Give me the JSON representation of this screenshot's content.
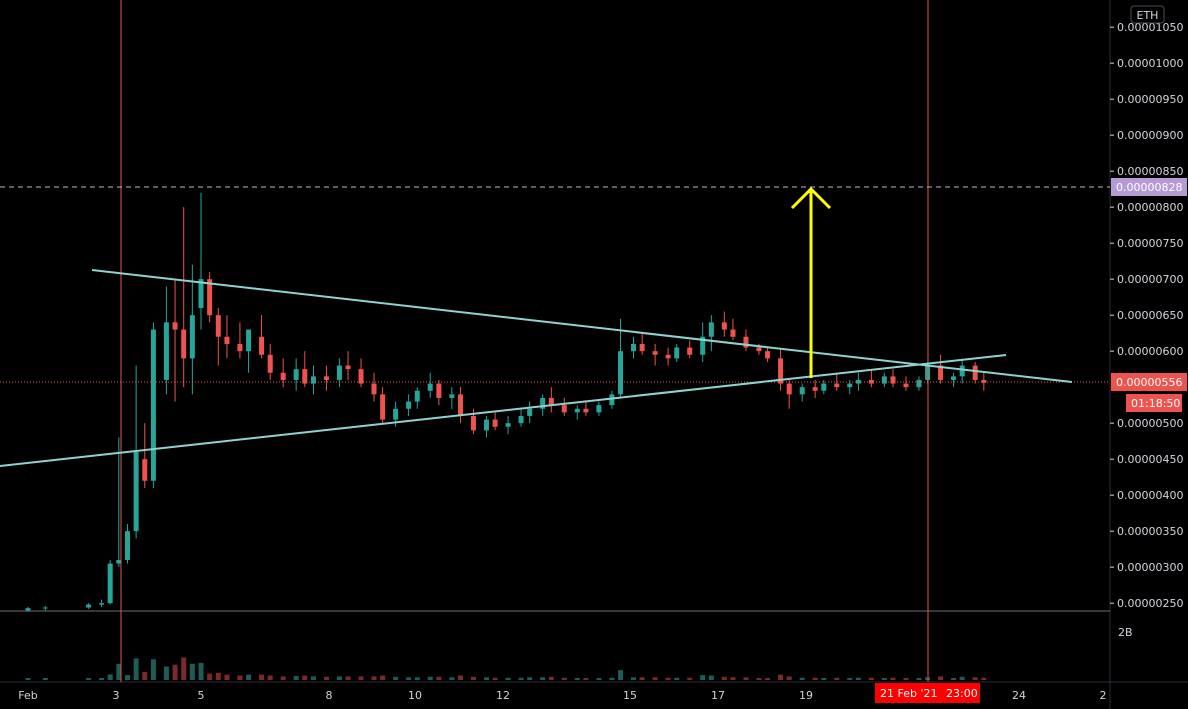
{
  "chart": {
    "currency_label": "ETH",
    "volume_scale_label": "2B",
    "countdown": "01:18:50",
    "crosshair_date": "21 Feb '21",
    "crosshair_time": "23:00"
  },
  "chart_data": {
    "type": "candlestick",
    "y_ticks": [
      "0.00001050",
      "0.00001000",
      "0.00000950",
      "0.00000900",
      "0.00000850",
      "0.00000800",
      "0.00000750",
      "0.00000700",
      "0.00000650",
      "0.00000600",
      "0.00000500",
      "0.00000450",
      "0.00000400",
      "0.00000350",
      "0.00000300",
      "0.00000250"
    ],
    "x_ticks": [
      "Feb",
      "3",
      "5",
      "8",
      "10",
      "12",
      "15",
      "17",
      "19",
      "24",
      "2"
    ],
    "price_levels": {
      "target": "0.00000828",
      "current": "0.00000556"
    },
    "ylim": [
      2.4e-06,
      1.06e-05
    ],
    "candles": [
      [
        1.0,
        2.4,
        2.45,
        2.38,
        2.43
      ],
      [
        1.2,
        2.43,
        2.46,
        2.4,
        2.44
      ],
      [
        1.7,
        2.44,
        2.5,
        2.42,
        2.48
      ],
      [
        1.85,
        2.48,
        2.55,
        2.45,
        2.5
      ],
      [
        1.95,
        2.5,
        3.1,
        2.48,
        3.05
      ],
      [
        2.05,
        3.05,
        4.8,
        3.0,
        3.1
      ],
      [
        2.15,
        3.1,
        3.6,
        3.05,
        3.5
      ],
      [
        2.25,
        3.5,
        5.8,
        3.4,
        4.6
      ],
      [
        2.35,
        4.5,
        5.0,
        4.1,
        4.2
      ],
      [
        2.45,
        4.2,
        6.4,
        4.1,
        6.3
      ],
      [
        2.6,
        5.6,
        6.9,
        5.4,
        6.4
      ],
      [
        2.7,
        6.4,
        7.0,
        5.3,
        6.3
      ],
      [
        2.8,
        6.3,
        8.0,
        5.5,
        5.9
      ],
      [
        2.9,
        5.9,
        7.2,
        5.4,
        6.5
      ],
      [
        3.0,
        6.6,
        8.2,
        6.3,
        7.0
      ],
      [
        3.1,
        7.0,
        7.1,
        6.4,
        6.5
      ],
      [
        3.2,
        6.5,
        6.6,
        5.8,
        6.2
      ],
      [
        3.3,
        6.2,
        6.5,
        5.9,
        6.1
      ],
      [
        3.45,
        6.1,
        6.4,
        5.9,
        6.0
      ],
      [
        3.55,
        6.0,
        6.3,
        5.7,
        6.3
      ],
      [
        3.7,
        6.2,
        6.5,
        5.9,
        5.95
      ],
      [
        3.8,
        5.95,
        6.1,
        5.6,
        5.7
      ],
      [
        3.95,
        5.7,
        5.9,
        5.5,
        5.6
      ],
      [
        4.1,
        5.6,
        5.9,
        5.45,
        5.75
      ],
      [
        4.2,
        5.75,
        6.0,
        5.5,
        5.55
      ],
      [
        4.3,
        5.55,
        5.8,
        5.4,
        5.65
      ],
      [
        4.45,
        5.65,
        5.8,
        5.45,
        5.6
      ],
      [
        4.6,
        5.6,
        5.9,
        5.5,
        5.8
      ],
      [
        4.7,
        5.8,
        6.0,
        5.6,
        5.75
      ],
      [
        4.85,
        5.75,
        5.9,
        5.5,
        5.55
      ],
      [
        5.0,
        5.55,
        5.7,
        5.3,
        5.4
      ],
      [
        5.1,
        5.4,
        5.5,
        5.0,
        5.05
      ],
      [
        5.25,
        5.05,
        5.3,
        4.95,
        5.2
      ],
      [
        5.4,
        5.2,
        5.4,
        5.1,
        5.3
      ],
      [
        5.5,
        5.3,
        5.5,
        5.2,
        5.45
      ],
      [
        5.65,
        5.45,
        5.7,
        5.35,
        5.55
      ],
      [
        5.75,
        5.55,
        5.6,
        5.25,
        5.35
      ],
      [
        5.9,
        5.35,
        5.5,
        5.2,
        5.4
      ],
      [
        6.0,
        5.4,
        5.5,
        5.0,
        5.1
      ],
      [
        6.15,
        5.1,
        5.2,
        4.85,
        4.9
      ],
      [
        6.3,
        4.9,
        5.1,
        4.8,
        5.05
      ],
      [
        6.4,
        5.05,
        5.15,
        4.9,
        4.95
      ],
      [
        6.55,
        4.95,
        5.1,
        4.85,
        5.0
      ],
      [
        6.7,
        5.0,
        5.2,
        4.95,
        5.1
      ],
      [
        6.8,
        5.1,
        5.3,
        5.0,
        5.2
      ],
      [
        6.95,
        5.2,
        5.4,
        5.1,
        5.35
      ],
      [
        7.05,
        5.35,
        5.5,
        5.15,
        5.25
      ],
      [
        7.2,
        5.25,
        5.35,
        5.1,
        5.15
      ],
      [
        7.35,
        5.15,
        5.25,
        5.05,
        5.2
      ],
      [
        7.45,
        5.2,
        5.3,
        5.1,
        5.15
      ],
      [
        7.6,
        5.15,
        5.3,
        5.1,
        5.25
      ],
      [
        7.75,
        5.25,
        5.45,
        5.2,
        5.4
      ],
      [
        7.85,
        5.4,
        6.45,
        5.35,
        6.0
      ],
      [
        8.0,
        6.0,
        6.2,
        5.9,
        6.1
      ],
      [
        8.1,
        6.1,
        6.25,
        5.95,
        6.0
      ],
      [
        8.25,
        6.0,
        6.1,
        5.8,
        5.95
      ],
      [
        8.4,
        5.95,
        6.05,
        5.8,
        5.9
      ],
      [
        8.5,
        5.9,
        6.1,
        5.85,
        6.05
      ],
      [
        8.65,
        6.05,
        6.15,
        5.9,
        5.95
      ],
      [
        8.8,
        5.95,
        6.4,
        5.85,
        6.2
      ],
      [
        8.9,
        6.2,
        6.5,
        6.0,
        6.4
      ],
      [
        9.05,
        6.4,
        6.55,
        6.2,
        6.3
      ],
      [
        9.15,
        6.3,
        6.45,
        6.15,
        6.2
      ],
      [
        9.3,
        6.2,
        6.3,
        6.0,
        6.05
      ],
      [
        9.45,
        6.05,
        6.1,
        5.95,
        6.0
      ],
      [
        9.55,
        6.0,
        6.05,
        5.85,
        5.9
      ],
      [
        9.7,
        5.9,
        6.05,
        5.45,
        5.55
      ],
      [
        9.8,
        5.55,
        5.6,
        5.2,
        5.4
      ],
      [
        9.95,
        5.4,
        5.55,
        5.3,
        5.5
      ],
      [
        10.1,
        5.5,
        5.6,
        5.35,
        5.45
      ],
      [
        10.2,
        5.45,
        5.6,
        5.4,
        5.55
      ],
      [
        10.35,
        5.55,
        5.7,
        5.45,
        5.5
      ],
      [
        10.5,
        5.5,
        5.6,
        5.4,
        5.55
      ],
      [
        10.6,
        5.55,
        5.7,
        5.45,
        5.6
      ],
      [
        10.75,
        5.6,
        5.75,
        5.5,
        5.55
      ],
      [
        10.9,
        5.55,
        5.7,
        5.5,
        5.65
      ],
      [
        11.0,
        5.65,
        5.75,
        5.5,
        5.55
      ],
      [
        11.15,
        5.55,
        5.65,
        5.45,
        5.5
      ],
      [
        11.3,
        5.5,
        5.65,
        5.45,
        5.6
      ],
      [
        11.4,
        5.6,
        5.85,
        5.55,
        5.8
      ],
      [
        11.55,
        5.8,
        5.95,
        5.55,
        5.6
      ],
      [
        11.7,
        5.6,
        5.7,
        5.5,
        5.65
      ],
      [
        11.8,
        5.65,
        5.9,
        5.55,
        5.8
      ],
      [
        11.95,
        5.8,
        5.85,
        5.55,
        5.6
      ],
      [
        12.05,
        5.6,
        5.7,
        5.45,
        5.56
      ]
    ]
  }
}
